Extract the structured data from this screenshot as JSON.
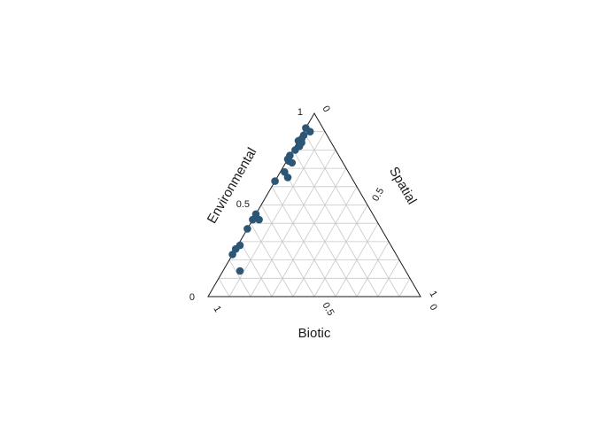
{
  "chart_data": {
    "type": "scatter",
    "subtype": "ternary",
    "axes": {
      "top": {
        "title": "Environmental"
      },
      "right": {
        "title": "Spatial"
      },
      "bottom": {
        "title": "Biotic"
      }
    },
    "tick_labels": {
      "environmental": [
        "0",
        "0.5",
        "1"
      ],
      "spatial": [
        "0",
        "0.5",
        "1"
      ],
      "biotic": [
        "1",
        "0.5",
        "0"
      ]
    },
    "grid": true,
    "grid_step": 0.1,
    "point_color": "#2b5676",
    "points": [
      {
        "environmental": 0.92,
        "spatial": 0.0,
        "biotic": 0.08
      },
      {
        "environmental": 0.9,
        "spatial": 0.03,
        "biotic": 0.07
      },
      {
        "environmental": 0.88,
        "spatial": 0.01,
        "biotic": 0.11
      },
      {
        "environmental": 0.86,
        "spatial": 0.01,
        "biotic": 0.13
      },
      {
        "environmental": 0.85,
        "spatial": 0.0,
        "biotic": 0.15
      },
      {
        "environmental": 0.84,
        "spatial": 0.02,
        "biotic": 0.14
      },
      {
        "environmental": 0.82,
        "spatial": 0.02,
        "biotic": 0.16
      },
      {
        "environmental": 0.8,
        "spatial": 0.01,
        "biotic": 0.19
      },
      {
        "environmental": 0.77,
        "spatial": 0.0,
        "biotic": 0.23
      },
      {
        "environmental": 0.75,
        "spatial": 0.0,
        "biotic": 0.25
      },
      {
        "environmental": 0.74,
        "spatial": 0.01,
        "biotic": 0.25
      },
      {
        "environmental": 0.73,
        "spatial": 0.03,
        "biotic": 0.24
      },
      {
        "environmental": 0.68,
        "spatial": 0.02,
        "biotic": 0.3
      },
      {
        "environmental": 0.65,
        "spatial": 0.05,
        "biotic": 0.3
      },
      {
        "environmental": 0.63,
        "spatial": 0.0,
        "biotic": 0.37
      },
      {
        "environmental": 0.45,
        "spatial": 0.0,
        "biotic": 0.55
      },
      {
        "environmental": 0.42,
        "spatial": 0.03,
        "biotic": 0.55
      },
      {
        "environmental": 0.42,
        "spatial": 0.0,
        "biotic": 0.58
      },
      {
        "environmental": 0.37,
        "spatial": 0.0,
        "biotic": 0.63
      },
      {
        "environmental": 0.28,
        "spatial": 0.01,
        "biotic": 0.71
      },
      {
        "environmental": 0.26,
        "spatial": 0.0,
        "biotic": 0.74
      },
      {
        "environmental": 0.23,
        "spatial": 0.0,
        "biotic": 0.77
      },
      {
        "environmental": 0.14,
        "spatial": 0.08,
        "biotic": 0.78
      }
    ]
  }
}
